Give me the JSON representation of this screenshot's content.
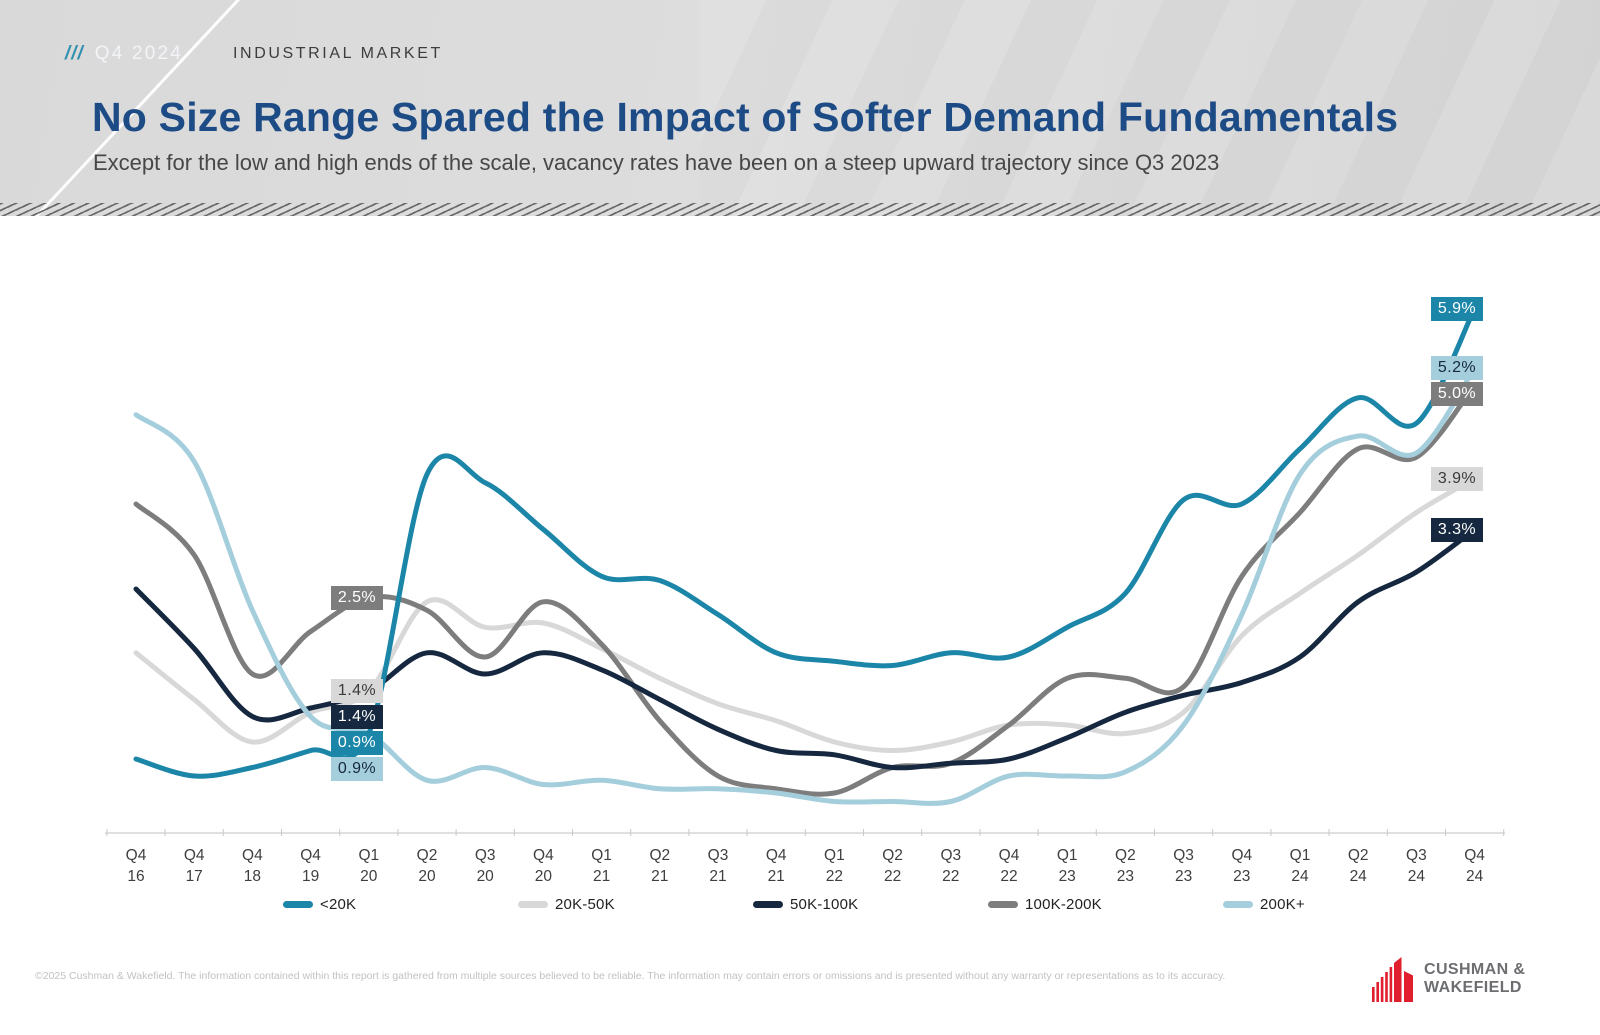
{
  "header": {
    "badge": "Q4 2024",
    "badge_slashes": "///",
    "eyebrow": "INDUSTRIAL MARKET",
    "title": "No Size Range Spared the Impact of Softer Demand Fundamentals",
    "subtitle": "Except for the low and high ends of the scale, vacancy rates have been on a steep upward trajectory since Q3 2023"
  },
  "chart_data": {
    "type": "line",
    "unit": "vacancy rate %",
    "categories": [
      "Q4 16",
      "Q4 17",
      "Q4 18",
      "Q4 19",
      "Q1 20",
      "Q2 20",
      "Q3 20",
      "Q4 20",
      "Q1 21",
      "Q2 21",
      "Q3 21",
      "Q4 21",
      "Q1 22",
      "Q2 22",
      "Q3 22",
      "Q4 22",
      "Q1 23",
      "Q2 23",
      "Q3 23",
      "Q4 23",
      "Q1 24",
      "Q2 24",
      "Q3 24",
      "Q4 24"
    ],
    "start_label_category": "Q1 20",
    "ylim": [
      0,
      6.5
    ],
    "grid": false,
    "legend_position": "bottom",
    "series": [
      {
        "name": "<20K",
        "color": "#1b86a8",
        "text_color": "#ffffff",
        "start_label": "0.9%",
        "end_label": "5.9%",
        "values": [
          0.6,
          0.4,
          0.5,
          0.7,
          0.9,
          3.95,
          3.85,
          3.3,
          2.75,
          2.7,
          2.3,
          1.85,
          1.75,
          1.7,
          1.85,
          1.8,
          2.15,
          2.55,
          3.65,
          3.6,
          4.25,
          4.85,
          4.55,
          5.9
        ]
      },
      {
        "name": "20K-50K",
        "color": "#d8d8d8",
        "text_color": "#3a3a3a",
        "start_label": "1.4%",
        "end_label": "3.9%",
        "values": [
          1.85,
          1.3,
          0.8,
          1.15,
          1.4,
          2.45,
          2.15,
          2.2,
          1.9,
          1.55,
          1.25,
          1.05,
          0.8,
          0.7,
          0.8,
          1.0,
          1.0,
          0.9,
          1.15,
          2.05,
          2.55,
          3.0,
          3.5,
          3.9
        ]
      },
      {
        "name": "50K-100K",
        "color": "#16283f",
        "text_color": "#ffffff",
        "start_label": "1.4%",
        "end_label": "3.3%",
        "values": [
          2.6,
          1.9,
          1.1,
          1.2,
          1.4,
          1.85,
          1.6,
          1.85,
          1.65,
          1.3,
          0.95,
          0.7,
          0.65,
          0.5,
          0.55,
          0.6,
          0.85,
          1.15,
          1.35,
          1.5,
          1.8,
          2.45,
          2.8,
          3.3
        ]
      },
      {
        "name": "100K-200K",
        "color": "#7d7d7d",
        "text_color": "#ffffff",
        "start_label": "2.5%",
        "end_label": "5.0%",
        "values": [
          3.6,
          3.0,
          1.6,
          2.1,
          2.5,
          2.35,
          1.8,
          2.45,
          1.95,
          1.05,
          0.4,
          0.25,
          0.2,
          0.5,
          0.55,
          1.0,
          1.55,
          1.55,
          1.45,
          2.75,
          3.5,
          4.25,
          4.15,
          5.0
        ]
      },
      {
        "name": "200K+",
        "color": "#a5cedd",
        "text_color": "#16283f",
        "start_label": "0.9%",
        "end_label": "5.2%",
        "values": [
          4.65,
          4.1,
          2.35,
          1.1,
          0.9,
          0.35,
          0.5,
          0.3,
          0.35,
          0.25,
          0.25,
          0.2,
          0.1,
          0.1,
          0.1,
          0.4,
          0.4,
          0.45,
          1.0,
          2.3,
          3.95,
          4.4,
          4.2,
          5.2
        ]
      }
    ]
  },
  "footer": {
    "disclaimer": "©2025 Cushman & Wakefield. The information contained within this report is gathered from multiple sources believed to be reliable. The information may contain errors or omissions and is presented without any warranty or representations as to its accuracy.",
    "logo_line1": "CUSHMAN &",
    "logo_line2": "WAKEFIELD"
  }
}
